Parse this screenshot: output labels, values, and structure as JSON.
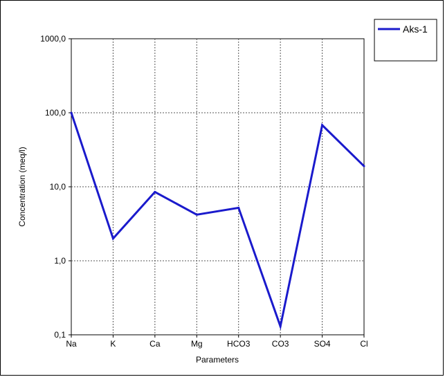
{
  "chart_data": {
    "type": "line",
    "scale_y": "log",
    "categories": [
      "Na",
      "K",
      "Ca",
      "Mg",
      "HCO3",
      "CO3",
      "SO4",
      "Cl"
    ],
    "series": [
      {
        "name": "Aks-1",
        "color": "#1a1acc",
        "values": [
          100,
          2.0,
          8.5,
          4.2,
          5.2,
          0.13,
          68,
          19
        ]
      }
    ],
    "y_ticks": [
      0.1,
      1,
      10,
      100,
      1000
    ],
    "y_tick_labels": [
      "0,1",
      "1,0",
      "10,0",
      "100,0",
      "1000,0"
    ],
    "ylim": [
      0.1,
      1000
    ],
    "xlabel": "Parameters",
    "ylabel": "Concentration (meq/l)",
    "grid": true,
    "legend_position": "top-right"
  }
}
